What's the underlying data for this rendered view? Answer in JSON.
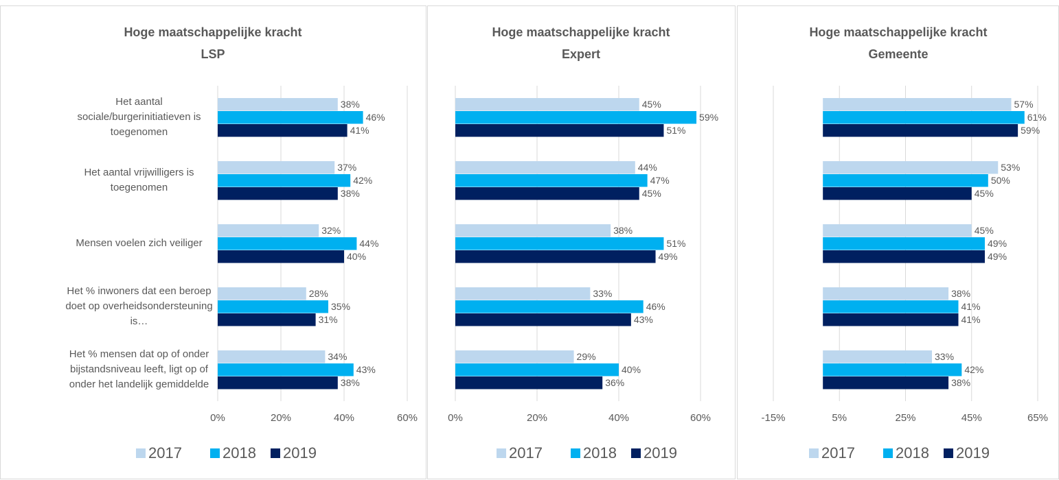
{
  "chart_data": [
    {
      "type": "hbar",
      "title": "Hoge maatschappelijke kracht",
      "subtitle": "LSP",
      "categories": [
        "Het aantal sociale/burgerinitiatieven is toegenomen",
        "Het aantal vrijwilligers is toegenomen",
        "Mensen voelen zich veiliger",
        "Het % inwoners dat een beroep doet op overheidsondersteuning is…",
        "Het % mensen dat op of onder bijstandsniveau leeft, ligt op of onder het landelijk gemiddelde"
      ],
      "series": [
        {
          "name": "2017",
          "color": "#bdd7ee",
          "values": [
            38,
            37,
            32,
            28,
            34
          ],
          "value_labels": [
            "38%",
            "37%",
            "32%",
            "28%",
            "34%"
          ]
        },
        {
          "name": "2018",
          "color": "#00b0f0",
          "values": [
            46,
            42,
            44,
            35,
            43
          ],
          "value_labels": [
            "46%",
            "42%",
            "44%",
            "35%",
            "43%"
          ]
        },
        {
          "name": "2019",
          "color": "#002060",
          "values": [
            41,
            38,
            40,
            31,
            38
          ],
          "value_labels": [
            "41%",
            "38%",
            "40%",
            "31%",
            "38%"
          ]
        }
      ],
      "xlim": [
        0,
        60
      ],
      "xticks": [
        {
          "value": 0,
          "label": "0%"
        },
        {
          "value": 20,
          "label": "20%"
        },
        {
          "value": 40,
          "label": "40%"
        },
        {
          "value": 60,
          "label": "60%"
        }
      ],
      "grid": true,
      "legend": "bottom"
    },
    {
      "type": "hbar",
      "title": "Hoge maatschappelijke kracht",
      "subtitle": "Expert",
      "series": [
        {
          "name": "2017",
          "color": "#bdd7ee",
          "values": [
            45,
            44,
            38,
            33,
            29
          ],
          "value_labels": [
            "45%",
            "44%",
            "38%",
            "33%",
            "29%"
          ]
        },
        {
          "name": "2018",
          "color": "#00b0f0",
          "values": [
            59,
            47,
            51,
            46,
            40
          ],
          "value_labels": [
            "59%",
            "47%",
            "51%",
            "46%",
            "40%"
          ]
        },
        {
          "name": "2019",
          "color": "#002060",
          "values": [
            51,
            45,
            49,
            43,
            36
          ],
          "value_labels": [
            "51%",
            "45%",
            "49%",
            "43%",
            "36%"
          ]
        }
      ],
      "xlim": [
        0,
        60
      ],
      "xticks": [
        {
          "value": 0,
          "label": "0%"
        },
        {
          "value": 20,
          "label": "20%"
        },
        {
          "value": 40,
          "label": "40%"
        },
        {
          "value": 60,
          "label": "60%"
        }
      ],
      "grid": true,
      "legend": "bottom"
    },
    {
      "type": "hbar",
      "title": "Hoge maatschappelijke kracht",
      "subtitle": "Gemeente",
      "series": [
        {
          "name": "2017",
          "color": "#bdd7ee",
          "values": [
            57,
            53,
            45,
            38,
            33
          ],
          "value_labels": [
            "57%",
            "53%",
            "45%",
            "38%",
            "33%"
          ]
        },
        {
          "name": "2018",
          "color": "#00b0f0",
          "values": [
            61,
            50,
            49,
            41,
            42
          ],
          "value_labels": [
            "61%",
            "50%",
            "49%",
            "41%",
            "42%"
          ]
        },
        {
          "name": "2019",
          "color": "#002060",
          "values": [
            59,
            45,
            49,
            41,
            38
          ],
          "value_labels": [
            "59%",
            "45%",
            "49%",
            "41%",
            "38%"
          ]
        }
      ],
      "xlim": [
        -15,
        65
      ],
      "xticks": [
        {
          "value": -15,
          "label": "-15%"
        },
        {
          "value": 5,
          "label": "5%"
        },
        {
          "value": 25,
          "label": "25%"
        },
        {
          "value": 45,
          "label": "45%"
        },
        {
          "value": 65,
          "label": "65%"
        }
      ],
      "grid": true,
      "legend": "bottom"
    }
  ]
}
